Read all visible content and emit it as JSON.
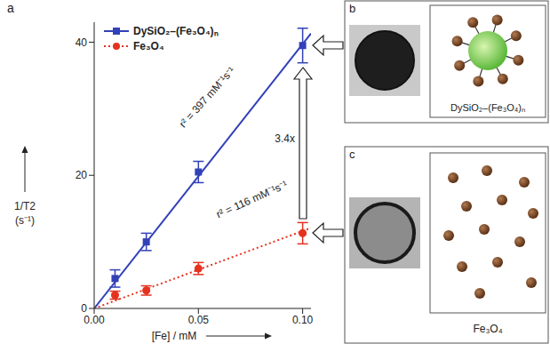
{
  "chart_data": {
    "type": "scatter",
    "panel_label": "a",
    "x_label": "[Fe] / mM",
    "y_label": "1/T2 (s⁻¹)",
    "xlim": [
      0,
      0.104
    ],
    "xticks": [
      {
        "value": 0,
        "label": "0.00"
      },
      {
        "value": 0.05,
        "label": "0.05"
      },
      {
        "value": 0.1,
        "label": "0.10"
      }
    ],
    "ylim": [
      0,
      43
    ],
    "yticks": [
      0,
      20,
      40
    ],
    "legend": "upper left",
    "series": [
      {
        "name": "DySiO₂–(Fe₃O₄)ₙ",
        "color": "#3241b8",
        "marker": "square",
        "line_style": "solid",
        "x": [
          0.01,
          0.025,
          0.05,
          0.1
        ],
        "values": [
          4.5,
          10,
          20.5,
          39.5
        ],
        "errors": [
          1.3,
          1.3,
          1.6,
          2.6
        ],
        "fit_x": [
          0,
          0.104
        ],
        "fit_values": [
          0,
          41.3
        ]
      },
      {
        "name": "Fe₃O₄",
        "color": "#e5321f",
        "marker": "circle",
        "line_style": "dotted",
        "x": [
          0.01,
          0.025,
          0.05,
          0.1
        ],
        "values": [
          2,
          2.7,
          6,
          11.3
        ],
        "errors": [
          0.6,
          0.7,
          0.9,
          1.6
        ],
        "fit_x": [
          0,
          0.104
        ],
        "fit_values": [
          0,
          12.1
        ]
      }
    ],
    "annotations": [
      {
        "text": "r² = 397 mM⁻¹s⁻¹"
      },
      {
        "text": "r² = 116 mM⁻¹s⁻¹"
      },
      {
        "text": "3.4x"
      }
    ]
  },
  "panels": [
    {
      "label": "b",
      "caption": "DySiO₂–(Fe₃O₄)ₙ"
    },
    {
      "label": "c",
      "caption": "Fe₃O₄"
    }
  ]
}
